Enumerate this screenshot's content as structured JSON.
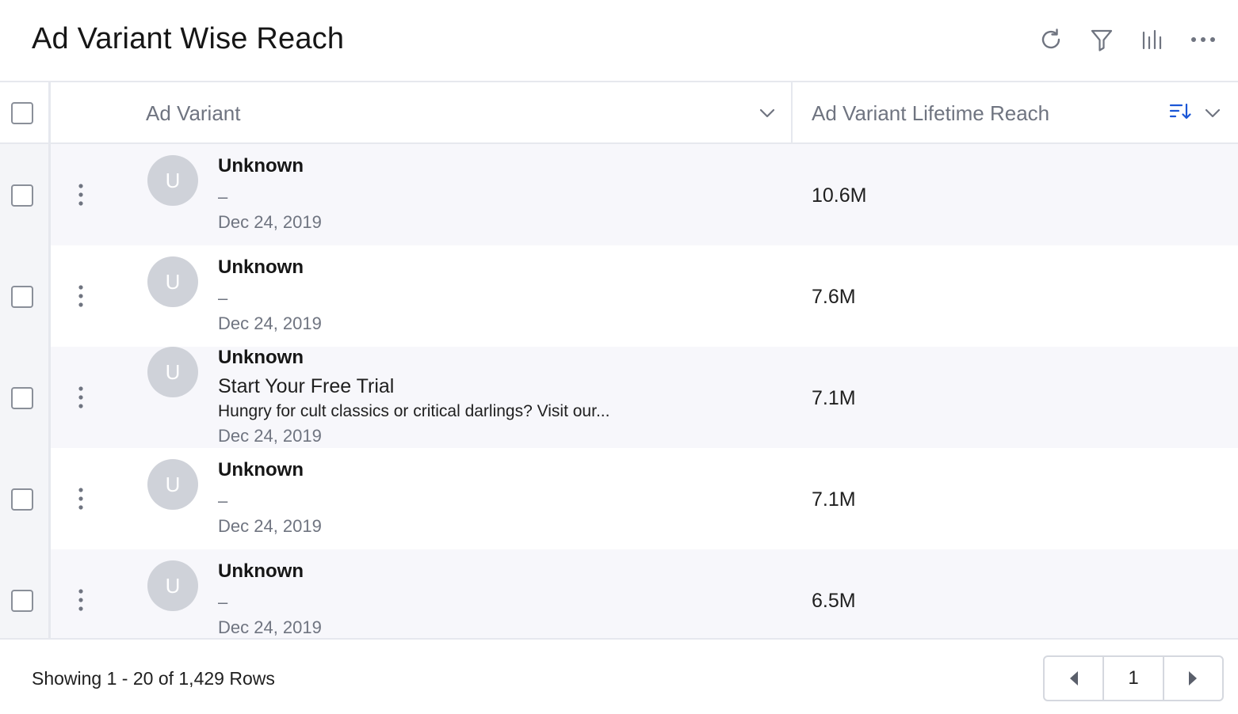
{
  "header": {
    "title": "Ad Variant Wise Reach",
    "toolbar": [
      {
        "icon": "refresh-icon"
      },
      {
        "icon": "filter-icon"
      },
      {
        "icon": "chart-columns-icon"
      },
      {
        "icon": "more-horizontal-icon"
      }
    ]
  },
  "table": {
    "columns": [
      {
        "label": "Ad Variant"
      },
      {
        "label": "Ad Variant Lifetime Reach",
        "sort": "descending"
      }
    ],
    "rows": [
      {
        "avatar": "U",
        "name": "Unknown",
        "line": "–",
        "headline": "",
        "body": "",
        "date": "Dec 24, 2019",
        "reach": "10.6M"
      },
      {
        "avatar": "U",
        "name": "Unknown",
        "line": "–",
        "headline": "",
        "body": "",
        "date": "Dec 24, 2019",
        "reach": "7.6M"
      },
      {
        "avatar": "U",
        "name": "Unknown",
        "line": "",
        "headline": "Start Your Free Trial",
        "body": "Hungry for cult classics or critical darlings? Visit our...",
        "date": "Dec 24, 2019",
        "reach": "7.1M"
      },
      {
        "avatar": "U",
        "name": "Unknown",
        "line": "–",
        "headline": "",
        "body": "",
        "date": "Dec 24, 2019",
        "reach": "7.1M"
      },
      {
        "avatar": "U",
        "name": "Unknown",
        "line": "–",
        "headline": "",
        "body": "",
        "date": "Dec 24, 2019",
        "reach": "6.5M"
      }
    ]
  },
  "footer": {
    "rows_info": "Showing 1 - 20 of 1,429 Rows",
    "page": "1"
  },
  "colors": {
    "accent": "#1a56d6",
    "avatar_bg": "#cfd2d9",
    "row_alt_bg": "#f7f7fb",
    "muted_text": "#6f7480"
  }
}
